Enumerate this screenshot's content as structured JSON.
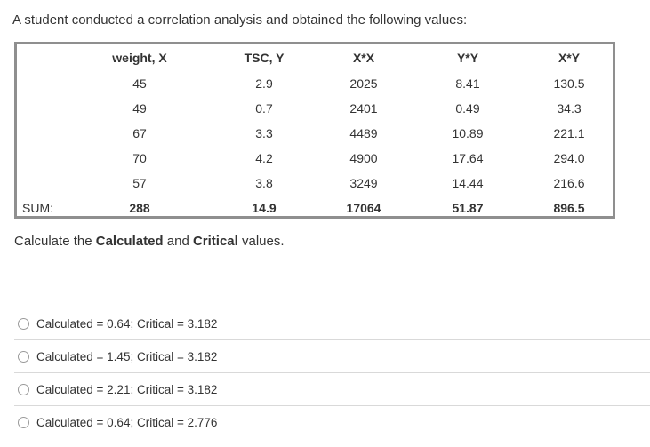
{
  "question": "A student conducted a correlation analysis and obtained the following values:",
  "table": {
    "headers": [
      "",
      "weight, X",
      "TSC, Y",
      "X*X",
      "Y*Y",
      "X*Y"
    ],
    "rows": [
      [
        "",
        "45",
        "2.9",
        "2025",
        "8.41",
        "130.5"
      ],
      [
        "",
        "49",
        "0.7",
        "2401",
        "0.49",
        "34.3"
      ],
      [
        "",
        "67",
        "3.3",
        "4489",
        "10.89",
        "221.1"
      ],
      [
        "",
        "70",
        "4.2",
        "4900",
        "17.64",
        "294.0"
      ],
      [
        "",
        "57",
        "3.8",
        "3249",
        "14.44",
        "216.6"
      ]
    ],
    "sum": [
      "SUM:",
      "288",
      "14.9",
      "17064",
      "51.87",
      "896.5"
    ]
  },
  "prompt": {
    "pre": "Calculate the ",
    "bold1": "Calculated",
    "mid": " and ",
    "bold2": "Critical",
    "post": " values."
  },
  "options": [
    "Calculated = 0.64; Critical = 3.182",
    "Calculated = 1.45; Critical = 3.182",
    "Calculated = 2.21; Critical = 3.182",
    "Calculated = 0.64; Critical = 2.776"
  ]
}
